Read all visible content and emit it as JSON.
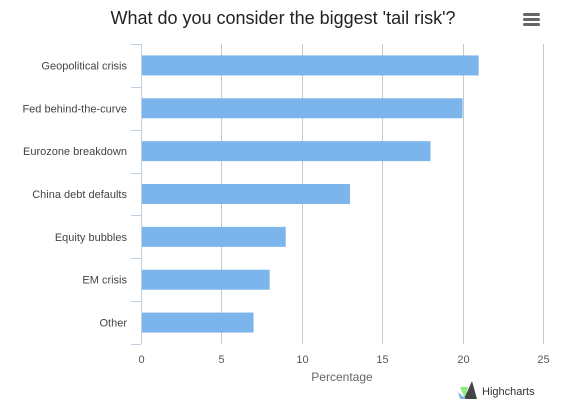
{
  "chart_data": {
    "type": "bar",
    "orientation": "horizontal",
    "title": "What do you consider the biggest 'tail risk'?",
    "categories": [
      "Geopolitical crisis",
      "Fed behind-the-curve",
      "Eurozone breakdown",
      "China debt defaults",
      "Equity bubbles",
      "EM crisis",
      "Other"
    ],
    "values": [
      21,
      20,
      18,
      13,
      9,
      8,
      7
    ],
    "xlabel": "Percentage",
    "ylabel": "",
    "xlim": [
      0,
      25
    ],
    "xticks": [
      "0",
      "5",
      "10",
      "15",
      "20",
      "25"
    ],
    "grid": "vertical",
    "legend": "none",
    "bar_color": "#7cb5ec"
  },
  "credits": {
    "label": "Highcharts"
  },
  "menu": {
    "icon": "hamburger-menu-icon"
  }
}
